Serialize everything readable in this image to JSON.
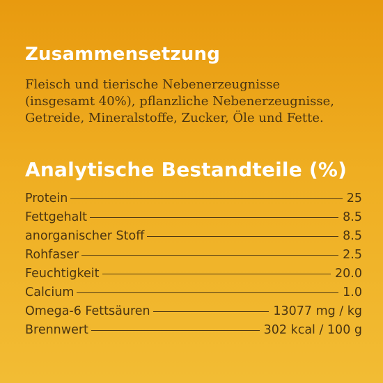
{
  "composition": {
    "title": "Zusammensetzung",
    "lines": [
      "Fleisch und tierische Nebenerzeugnisse",
      "(insgesamt 40%), pflanzliche Nebenerzeugnisse,",
      "Getreide, Mineralstoffe, Zucker, Öle und Fette."
    ]
  },
  "analytical": {
    "title": "Analytische Bestandteile (%)",
    "rows": [
      {
        "label": "Protein",
        "value": "25"
      },
      {
        "label": "Fettgehalt",
        "value": "8.5"
      },
      {
        "label": "anorganischer Stoff",
        "value": "8.5"
      },
      {
        "label": "Rohfaser",
        "value": "2.5"
      },
      {
        "label": "Feuchtigkeit",
        "value": "20.0"
      },
      {
        "label": "Calcium",
        "value": "1.0"
      },
      {
        "label": "Omega-6 Fettsäuren",
        "value": "13077 mg / kg"
      },
      {
        "label": "Brennwert",
        "value": "302 kcal / 100 g"
      }
    ]
  }
}
